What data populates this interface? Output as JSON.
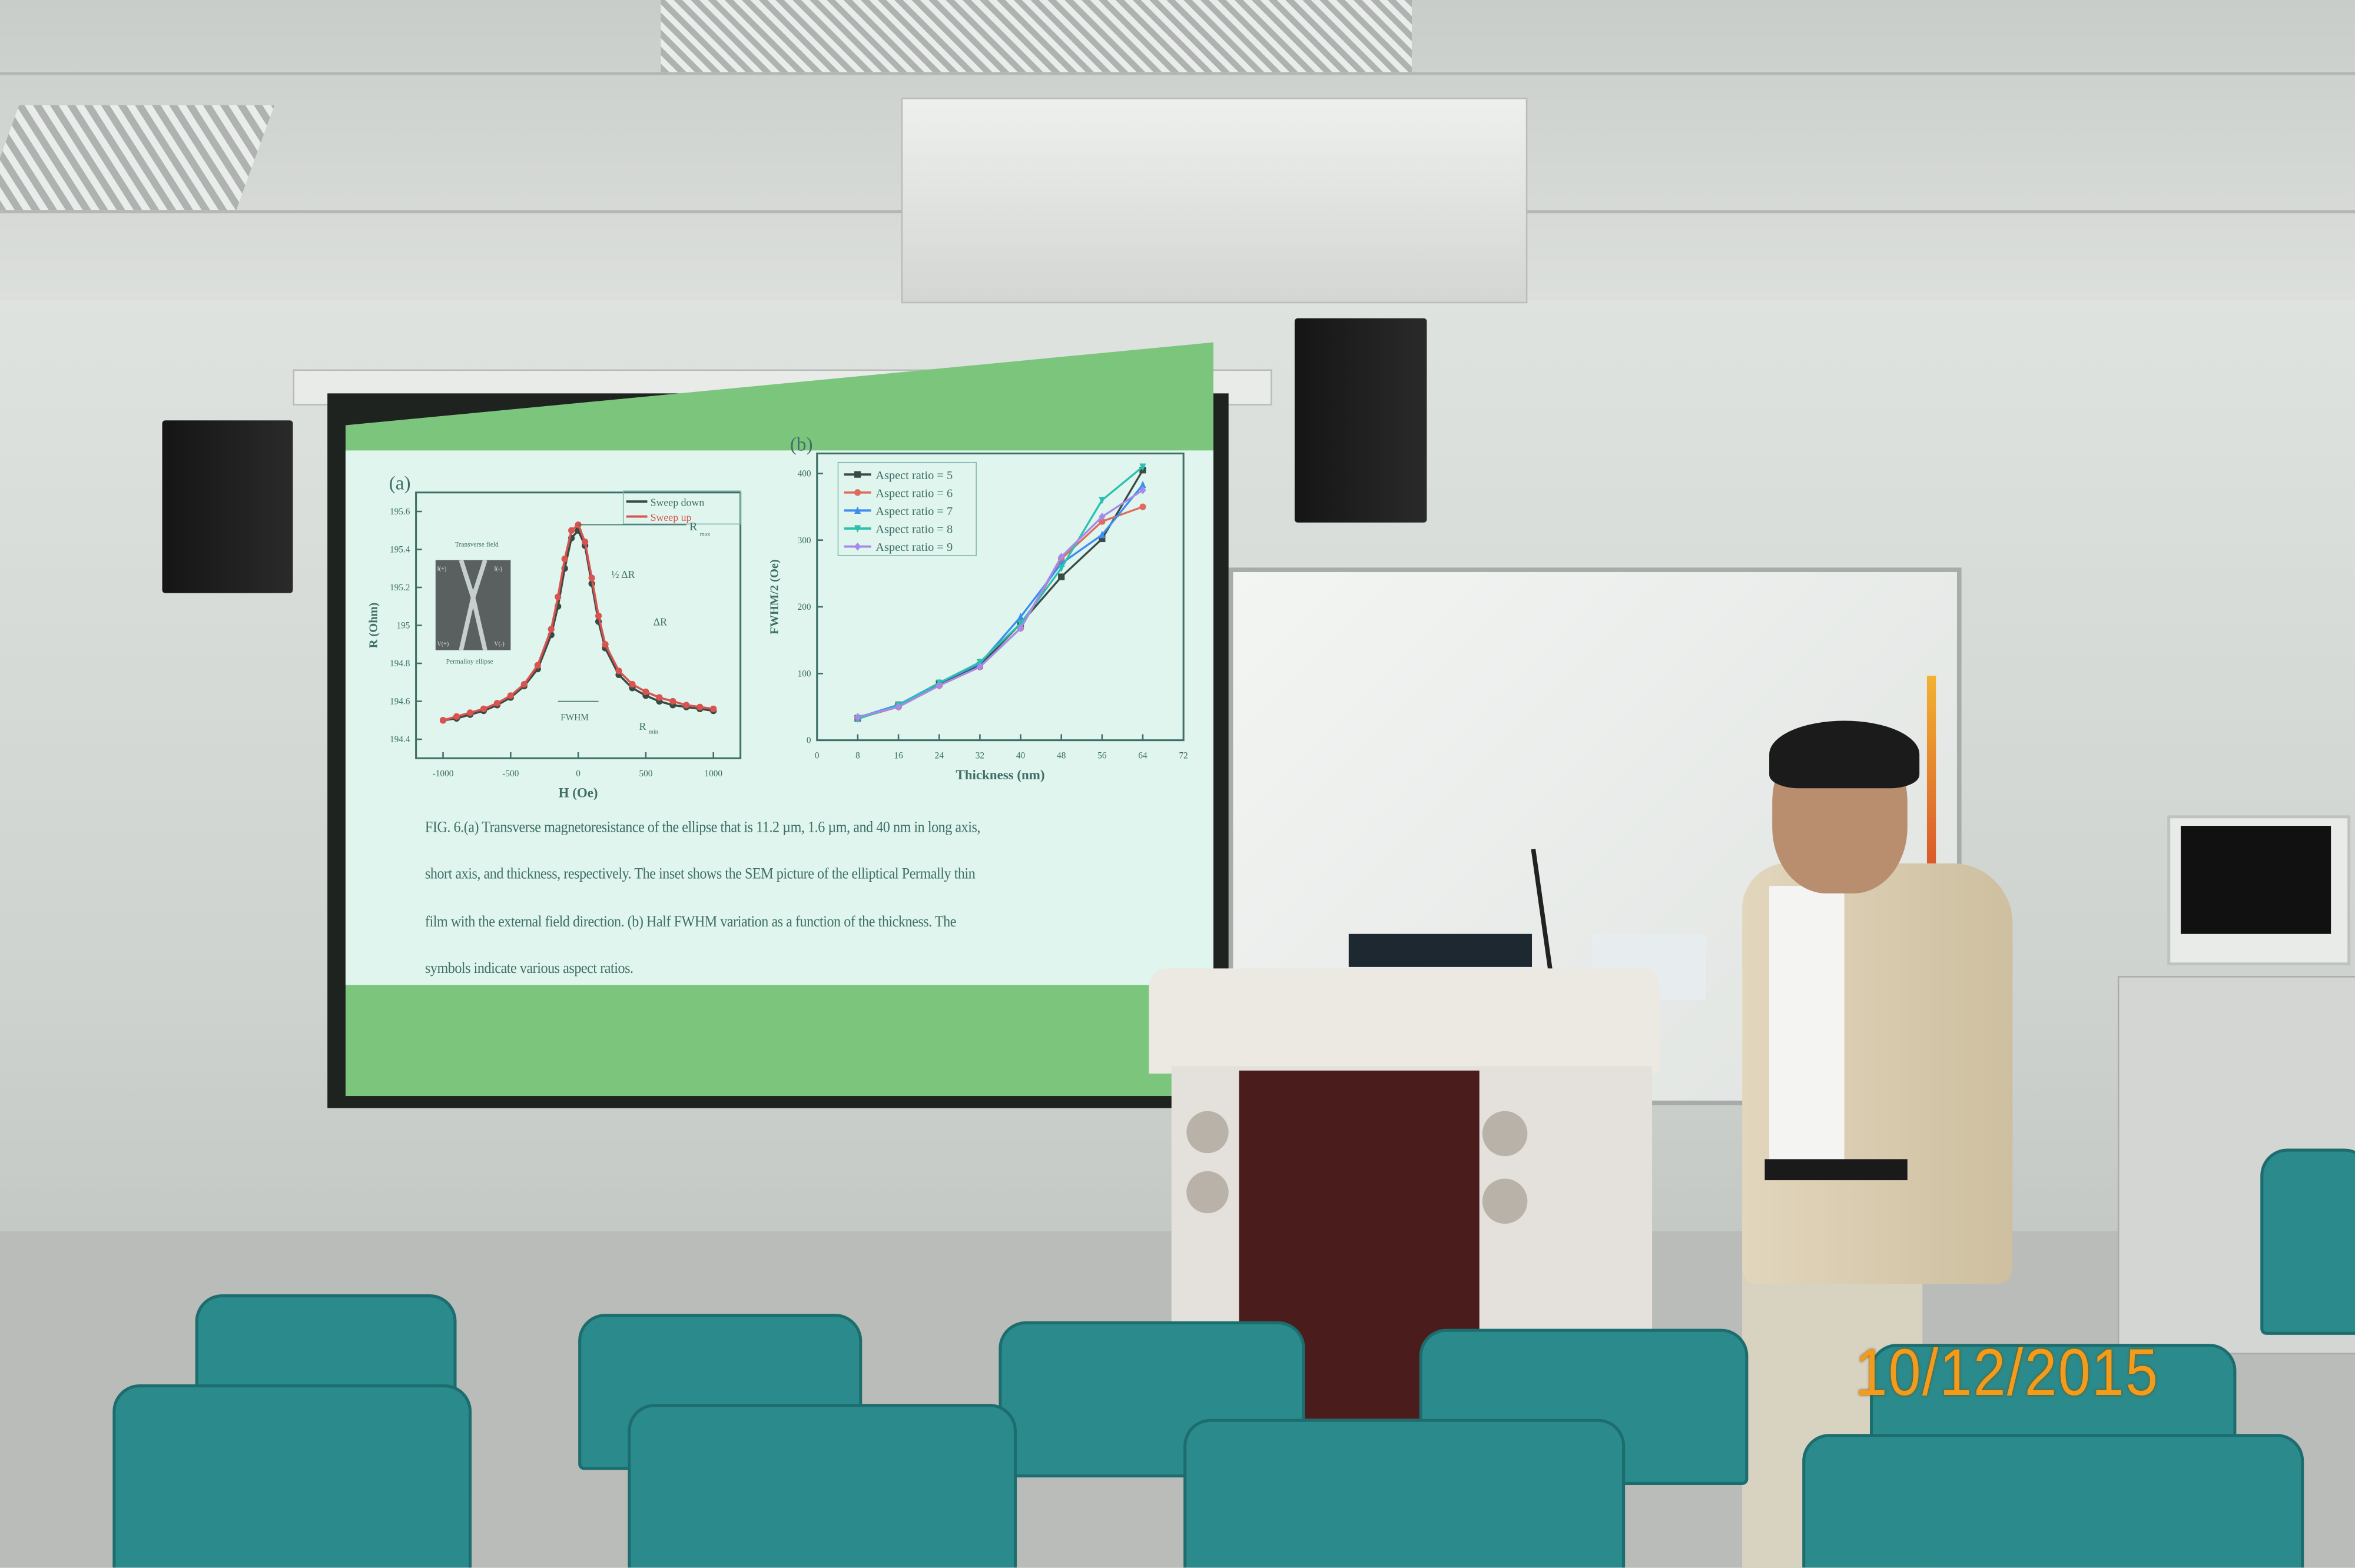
{
  "date_stamp": "10/12/2015",
  "slide": {
    "colors": {
      "band": "#7cc57d",
      "background": "#dff5ee",
      "text": "#3f6f66"
    },
    "caption_lines": [
      "FIG. 6.(a) Transverse magnetoresistance of the ellipse that is 11.2 µm, 1.6 µm, and 40 nm in long axis,",
      "short axis, and thickness, respectively. The inset shows the SEM picture of the elliptical Permally thin",
      "film with the external field direction. (b) Half FWHM variation as a function of the thickness. The",
      "symbols indicate various aspect ratios."
    ]
  },
  "chart_data": [
    {
      "type": "scatter",
      "panel_label": "(a)",
      "xlabel": "H (Oe)",
      "ylabel": "R (Ohm)",
      "xlim": [
        -1200,
        1200
      ],
      "ylim": [
        194.3,
        195.7
      ],
      "xticks": [
        -1000,
        -500,
        0,
        500,
        1000
      ],
      "yticks": [
        194.4,
        194.6,
        194.8,
        195.0,
        195.2,
        195.4,
        195.6
      ],
      "legend_position": "top-right",
      "annotations": {
        "rmax": "R",
        "rmax_sub": "max",
        "rmin": "R",
        "rmin_sub": "min",
        "half_dr": "½ ΔR",
        "dr": "ΔR",
        "fwhm": "FWHM",
        "field": "Transverse field",
        "ellipse": "Permalloy ellipse",
        "inset_labels": [
          "I(+)",
          "I(-)",
          "V(+)",
          "V(-)"
        ]
      },
      "x": [
        -1000,
        -900,
        -800,
        -700,
        -600,
        -500,
        -400,
        -300,
        -200,
        -150,
        -100,
        -50,
        0,
        50,
        100,
        150,
        200,
        300,
        400,
        500,
        600,
        700,
        800,
        900,
        1000
      ],
      "series": [
        {
          "name": "Sweep down",
          "color": "#3a4a45",
          "values": [
            194.5,
            194.51,
            194.53,
            194.55,
            194.58,
            194.62,
            194.68,
            194.77,
            194.95,
            195.1,
            195.3,
            195.46,
            195.5,
            195.42,
            195.22,
            195.02,
            194.88,
            194.74,
            194.67,
            194.63,
            194.6,
            194.58,
            194.57,
            194.56,
            194.55
          ]
        },
        {
          "name": "Sweep up",
          "color": "#d9534f",
          "values": [
            194.5,
            194.52,
            194.54,
            194.56,
            194.59,
            194.63,
            194.69,
            194.79,
            194.98,
            195.15,
            195.35,
            195.5,
            195.53,
            195.44,
            195.25,
            195.05,
            194.9,
            194.76,
            194.69,
            194.65,
            194.62,
            194.6,
            194.58,
            194.57,
            194.56
          ]
        }
      ]
    },
    {
      "type": "line",
      "panel_label": "(b)",
      "xlabel": "Thickness (nm)",
      "ylabel": "FWHM/2 (Oe)",
      "xlim": [
        0,
        72
      ],
      "ylim": [
        0,
        430
      ],
      "xticks": [
        0,
        8,
        16,
        24,
        32,
        40,
        48,
        56,
        64,
        72
      ],
      "yticks": [
        0,
        100,
        200,
        300,
        400
      ],
      "legend_position": "top-left",
      "x": [
        8,
        16,
        24,
        32,
        40,
        48,
        56,
        64
      ],
      "series": [
        {
          "name": "Aspect ratio = 5",
          "color": "#3b4a44",
          "marker": "square",
          "values": [
            33,
            53,
            85,
            112,
            175,
            245,
            302,
            405
          ]
        },
        {
          "name": "Aspect ratio = 6",
          "color": "#e06a5e",
          "marker": "circle",
          "values": [
            33,
            50,
            82,
            110,
            168,
            272,
            328,
            350
          ]
        },
        {
          "name": "Aspect ratio = 7",
          "color": "#3d8df0",
          "marker": "triangle-up",
          "values": [
            34,
            53,
            86,
            115,
            185,
            265,
            308,
            383
          ]
        },
        {
          "name": "Aspect ratio = 8",
          "color": "#2bc0b0",
          "marker": "triangle-down",
          "values": [
            32,
            52,
            86,
            117,
            175,
            258,
            360,
            410
          ]
        },
        {
          "name": "Aspect ratio = 9",
          "color": "#a58be8",
          "marker": "diamond",
          "values": [
            35,
            50,
            82,
            110,
            168,
            275,
            335,
            375
          ]
        }
      ]
    }
  ]
}
